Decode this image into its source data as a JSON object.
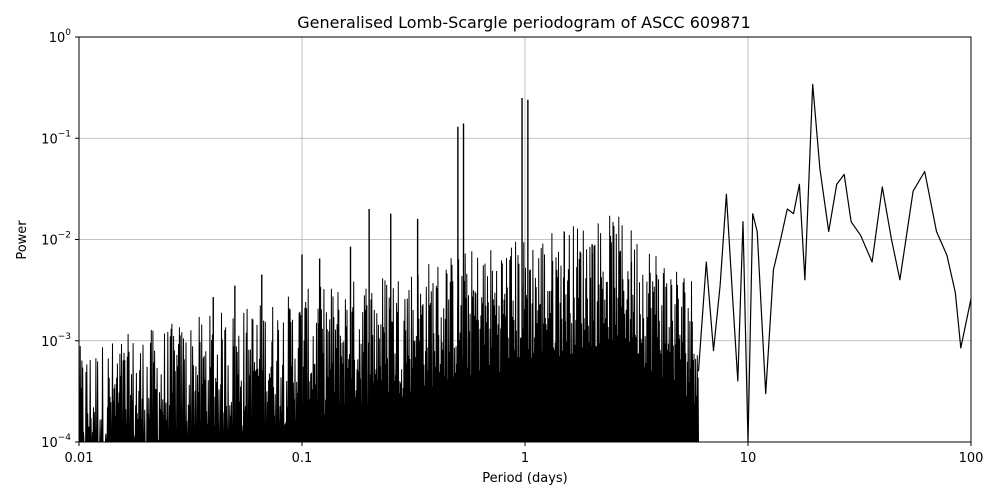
{
  "chart_data": {
    "type": "line",
    "title": "Generalised Lomb-Scargle periodogram of ASCC 609871",
    "xlabel": "Period (days)",
    "ylabel": "Power",
    "xscale": "log",
    "yscale": "log",
    "xlim": [
      0.01,
      100
    ],
    "ylim": [
      0.0001,
      1
    ],
    "grid": true,
    "line_color": "#000000",
    "x_ticks": [
      "0.01",
      "0.1",
      "1",
      "10",
      "100"
    ],
    "y_ticks": [
      {
        "base": "10",
        "exp": "−4",
        "value": 0.0001
      },
      {
        "base": "10",
        "exp": "−3",
        "value": 0.001
      },
      {
        "base": "10",
        "exp": "−2",
        "value": 0.01
      },
      {
        "base": "10",
        "exp": "−1",
        "value": 0.1
      },
      {
        "base": "10",
        "exp": "0",
        "value": 1
      }
    ],
    "series": [
      {
        "peaks": [
          [
            0.04,
            0.0027
          ],
          [
            0.05,
            0.0035
          ],
          [
            0.066,
            0.0045
          ],
          [
            0.1,
            0.0071
          ],
          [
            0.12,
            0.0065
          ],
          [
            0.165,
            0.0085
          ],
          [
            0.2,
            0.02
          ],
          [
            0.25,
            0.018
          ],
          [
            0.33,
            0.016
          ],
          [
            0.5,
            0.13
          ],
          [
            0.53,
            0.14
          ],
          [
            0.97,
            0.25
          ],
          [
            1.03,
            0.24
          ],
          [
            1.5,
            0.012
          ],
          [
            2.0,
            0.009
          ],
          [
            3.0,
            0.006
          ]
        ],
        "smooth": [
          [
            6.0,
            0.0005
          ],
          [
            6.5,
            0.006
          ],
          [
            7.0,
            0.0008
          ],
          [
            7.5,
            0.0035
          ],
          [
            8.0,
            0.028
          ],
          [
            8.5,
            0.003
          ],
          [
            9.0,
            0.0004
          ],
          [
            9.5,
            0.015
          ],
          [
            10.0,
            0.0001
          ],
          [
            10.5,
            0.018
          ],
          [
            11.0,
            0.012
          ],
          [
            12.0,
            0.0003
          ],
          [
            13.0,
            0.005
          ],
          [
            14.0,
            0.01
          ],
          [
            15.0,
            0.02
          ],
          [
            16.0,
            0.018
          ],
          [
            17.0,
            0.035
          ],
          [
            18.0,
            0.004
          ],
          [
            19.5,
            0.34
          ],
          [
            21.0,
            0.05
          ],
          [
            23.0,
            0.012
          ],
          [
            25.0,
            0.035
          ],
          [
            27.0,
            0.044
          ],
          [
            29.0,
            0.015
          ],
          [
            32.0,
            0.011
          ],
          [
            36.0,
            0.006
          ],
          [
            40.0,
            0.033
          ],
          [
            44.0,
            0.01
          ],
          [
            48.0,
            0.004
          ],
          [
            55.0,
            0.03
          ],
          [
            62.0,
            0.047
          ],
          [
            70.0,
            0.012
          ],
          [
            78.0,
            0.007
          ],
          [
            85.0,
            0.003
          ],
          [
            90.0,
            0.00085
          ],
          [
            100.0,
            0.0026
          ]
        ]
      }
    ]
  }
}
